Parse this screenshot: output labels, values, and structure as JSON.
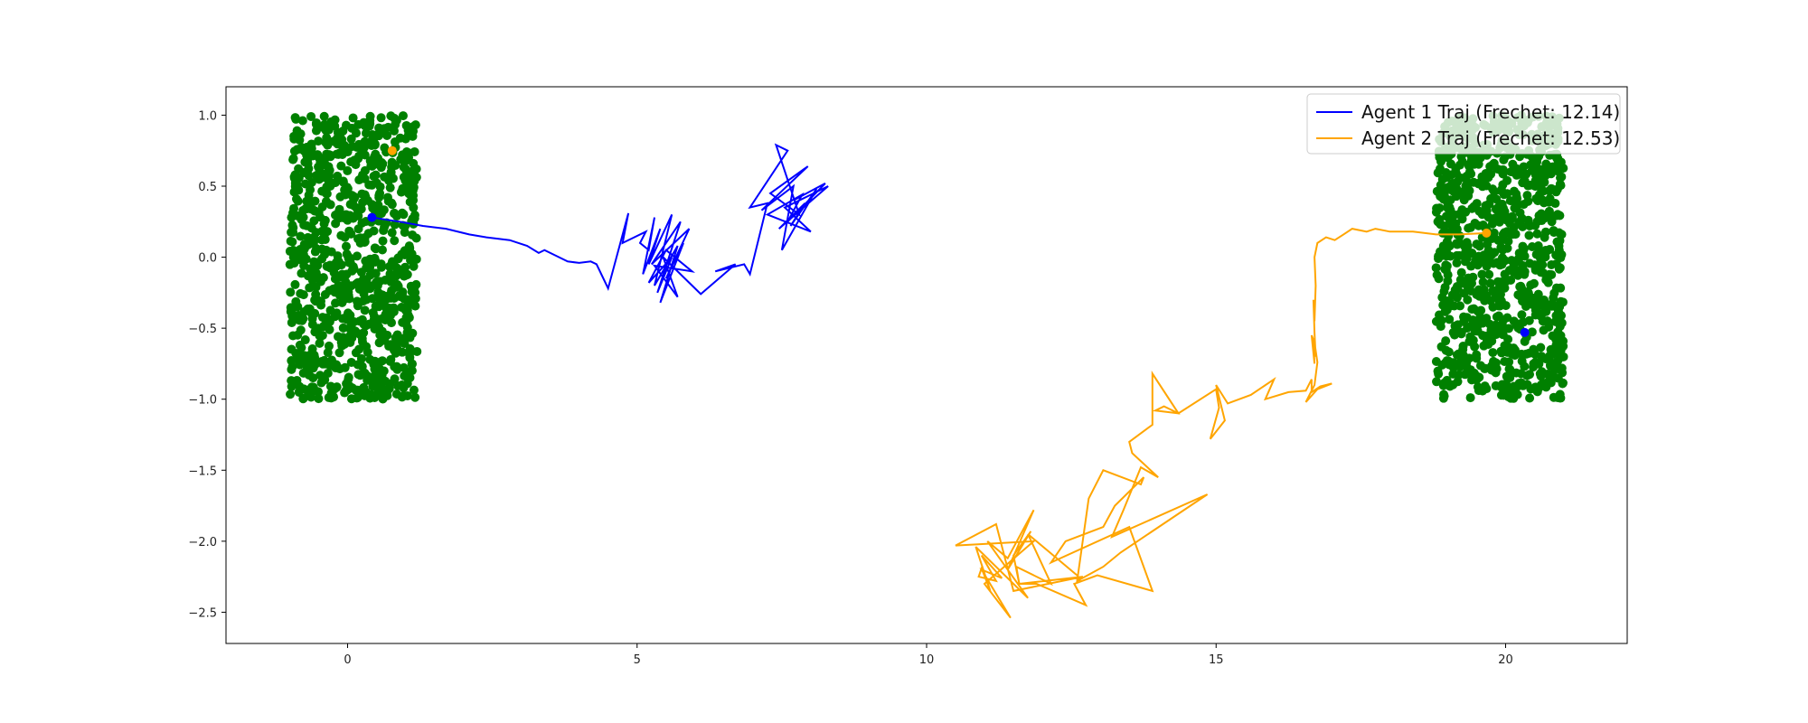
{
  "chart_data": {
    "type": "line",
    "title": "",
    "xlabel": "",
    "ylabel": "",
    "xlim": [
      -2.1,
      22.1
    ],
    "ylim": [
      -2.72,
      1.2
    ],
    "xticks": [
      0,
      5,
      10,
      15,
      20
    ],
    "xtick_labels": [
      "0",
      "5",
      "10",
      "15",
      "20"
    ],
    "yticks": [
      1.0,
      0.5,
      0.0,
      -0.5,
      -1.0,
      -1.5,
      -2.0,
      -2.5
    ],
    "ytick_labels": [
      "1.0",
      "0.5",
      "0.0",
      "−0.5",
      "−1.0",
      "−1.5",
      "−2.0",
      "−2.5"
    ],
    "grid": false,
    "legend_position": "top-right",
    "clusters": [
      {
        "color": "#008000",
        "x_range": [
          -1.0,
          1.2
        ],
        "y_range": [
          -1.0,
          1.0
        ],
        "count": 900
      },
      {
        "color": "#008000",
        "x_range": [
          18.8,
          21.0
        ],
        "y_range": [
          -1.0,
          1.0
        ],
        "count": 900
      }
    ],
    "markers": [
      {
        "x": 0.42,
        "y": 0.28,
        "color": "#0000ff"
      },
      {
        "x": 0.77,
        "y": 0.75,
        "color": "#ffa500"
      },
      {
        "x": 20.33,
        "y": -0.53,
        "color": "#0000ff"
      },
      {
        "x": 19.67,
        "y": 0.17,
        "color": "#ffa500"
      }
    ],
    "series": [
      {
        "name": "Agent 1 Traj (Frechet: 12.14)",
        "color": "#0000ff",
        "x": [
          0.42,
          0.9,
          1.3,
          1.7,
          2.1,
          2.4,
          2.8,
          3.1,
          3.3,
          3.4,
          3.6,
          3.8,
          4.0,
          4.2,
          4.3,
          4.5,
          4.85,
          4.75,
          5.15,
          5.05,
          5.2,
          5.3,
          5.1,
          5.4,
          5.2,
          5.6,
          5.3,
          5.7,
          5.4,
          5.8,
          5.5,
          5.9,
          5.25,
          5.75,
          5.35,
          5.6,
          5.2,
          5.5,
          5.95,
          5.3,
          5.7,
          5.45,
          6.1,
          6.7,
          6.35,
          6.85,
          6.95,
          7.25,
          6.95,
          7.6,
          7.4,
          7.8,
          7.3,
          7.95,
          7.15,
          7.7,
          7.5,
          8.1,
          7.65,
          7.9,
          7.45,
          8.3,
          7.55,
          8.0,
          7.25,
          7.85,
          7.6,
          8.25,
          7.7
        ],
        "y": [
          0.28,
          0.25,
          0.22,
          0.2,
          0.16,
          0.14,
          0.12,
          0.08,
          0.03,
          0.05,
          0.01,
          -0.03,
          -0.04,
          -0.03,
          -0.05,
          -0.22,
          0.31,
          0.1,
          0.18,
          0.1,
          0.05,
          0.28,
          -0.12,
          0.2,
          -0.05,
          0.3,
          -0.2,
          0.08,
          -0.32,
          0.1,
          -0.15,
          0.2,
          -0.05,
          0.25,
          -0.25,
          0.0,
          -0.18,
          0.05,
          -0.1,
          -0.06,
          -0.28,
          0.0,
          -0.26,
          -0.05,
          -0.1,
          -0.05,
          -0.12,
          0.38,
          0.35,
          0.75,
          0.79,
          0.3,
          0.45,
          0.64,
          0.33,
          0.5,
          0.05,
          0.48,
          0.22,
          0.38,
          0.2,
          0.5,
          0.35,
          0.18,
          0.3,
          0.44,
          0.25,
          0.52,
          0.4
        ]
      },
      {
        "name": "Agent 2 Traj (Frechet: 12.53)",
        "color": "#ffa500",
        "x": [
          19.67,
          19.2,
          18.8,
          18.4,
          18.0,
          17.75,
          17.6,
          17.35,
          17.2,
          17.05,
          16.9,
          16.75,
          16.7,
          16.72,
          16.7,
          16.68,
          16.7,
          16.72,
          16.68,
          16.7,
          16.65,
          16.7,
          16.75,
          16.7,
          16.55,
          16.75,
          17.0,
          16.8,
          16.65,
          16.65,
          16.55,
          16.25,
          15.85,
          16.0,
          15.6,
          15.2,
          15.0,
          15.15,
          14.9,
          15.05,
          15.0,
          14.35,
          14.1,
          13.95,
          14.35,
          13.9,
          13.9,
          13.5,
          13.55,
          14.0,
          13.7,
          13.4,
          13.2,
          14.85,
          13.35,
          13.05,
          12.6,
          12.8,
          13.05,
          13.7,
          13.75,
          13.25,
          13.05,
          12.4,
          12.15,
          13.5,
          13.9,
          12.95,
          12.55,
          12.75,
          11.9,
          11.6,
          11.5,
          11.8,
          11.4,
          11.85,
          11.4,
          11.05,
          11.75,
          10.85,
          11.1,
          10.95,
          10.9,
          11.2,
          10.95,
          11.3,
          10.95,
          11.45,
          11.0,
          11.85,
          10.5,
          11.2,
          11.5,
          12.7,
          11.6,
          11.55,
          12.15,
          11.75,
          12.6,
          12.65
        ],
        "y": [
          0.17,
          0.16,
          0.16,
          0.18,
          0.18,
          0.2,
          0.18,
          0.2,
          0.16,
          0.12,
          0.14,
          0.1,
          0.0,
          -0.2,
          -0.45,
          -0.3,
          -0.53,
          -0.7,
          -0.58,
          -0.75,
          -0.55,
          -0.6,
          -0.74,
          -0.9,
          -1.02,
          -0.93,
          -0.89,
          -0.91,
          -0.95,
          -0.86,
          -0.94,
          -0.95,
          -1.0,
          -0.86,
          -0.97,
          -1.03,
          -0.9,
          -1.15,
          -1.28,
          -1.06,
          -0.93,
          -1.1,
          -1.05,
          -1.08,
          -1.1,
          -0.82,
          -1.18,
          -1.3,
          -1.38,
          -1.55,
          -1.48,
          -1.78,
          -1.97,
          -1.67,
          -2.08,
          -2.18,
          -2.28,
          -1.7,
          -1.5,
          -1.6,
          -1.55,
          -1.75,
          -1.9,
          -2.0,
          -2.15,
          -1.9,
          -2.35,
          -2.24,
          -2.3,
          -2.45,
          -2.3,
          -2.3,
          -2.1,
          -1.93,
          -2.2,
          -1.78,
          -2.12,
          -2.0,
          -2.4,
          -2.04,
          -2.35,
          -2.19,
          -2.25,
          -2.28,
          -2.1,
          -2.26,
          -2.2,
          -2.54,
          -2.3,
          -2.0,
          -2.03,
          -1.88,
          -2.35,
          -2.25,
          -2.3,
          -2.18,
          -2.3,
          -1.95,
          -2.24,
          -2.28
        ]
      }
    ]
  }
}
